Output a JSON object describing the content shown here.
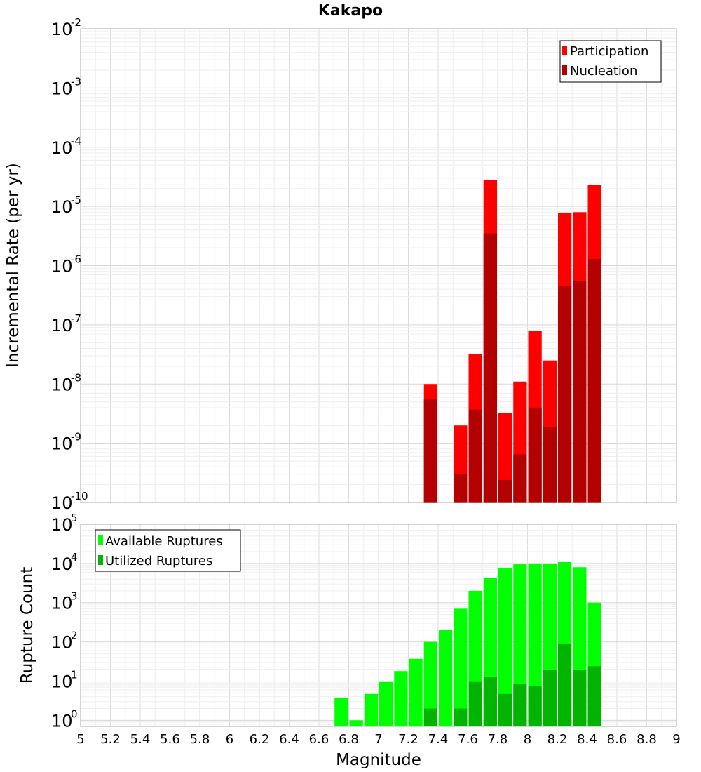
{
  "chart_data": [
    {
      "type": "bar",
      "title": "Kakapo",
      "xlabel": "",
      "ylabel": "Incremental Rate (per yr)",
      "xlim": [
        5,
        9
      ],
      "ylim": [
        1e-10,
        0.01
      ],
      "yscale": "log",
      "bin_width": 0.1,
      "grid": true,
      "legend_position": "top-right",
      "y_exponent_labels": [
        "-10",
        "-9",
        "-8",
        "-7",
        "-6",
        "-5",
        "-4",
        "-3",
        "-2"
      ],
      "series": [
        {
          "name": "Participation",
          "color": "#ff0000",
          "x": [
            7.35,
            7.55,
            7.65,
            7.75,
            7.85,
            7.95,
            8.05,
            8.15,
            8.25,
            8.35,
            8.45
          ],
          "values": [
            1e-08,
            2e-09,
            3.2e-08,
            2.8e-05,
            3.2e-09,
            1.1e-08,
            7.8e-08,
            2.5e-08,
            7.7e-06,
            8e-06,
            2.3e-05
          ]
        },
        {
          "name": "Nucleation",
          "color": "#b30000",
          "x": [
            7.35,
            7.55,
            7.65,
            7.75,
            7.85,
            7.95,
            8.05,
            8.15,
            8.25,
            8.35,
            8.45
          ],
          "values": [
            5.5e-09,
            3e-10,
            3.7e-09,
            3.5e-06,
            2.4e-10,
            6.5e-10,
            4e-09,
            1.9e-09,
            4.5e-07,
            5.5e-07,
            1.3e-06
          ]
        }
      ]
    },
    {
      "type": "bar",
      "title": "",
      "xlabel": "Magnitude",
      "ylabel": "Rupture Count",
      "xlim": [
        5,
        9
      ],
      "ylim": [
        0.7,
        100000
      ],
      "yscale": "log",
      "bin_width": 0.1,
      "grid": true,
      "legend_position": "top-left",
      "y_exponent_labels": [
        "0",
        "1",
        "2",
        "3",
        "4",
        "5"
      ],
      "x_tick_labels": [
        "5",
        "5.2",
        "5.4",
        "5.6",
        "5.8",
        "6",
        "6.2",
        "6.4",
        "6.6",
        "6.8",
        "7",
        "7.2",
        "7.4",
        "7.6",
        "7.8",
        "8",
        "8.2",
        "8.4",
        "8.6",
        "8.8",
        "9"
      ],
      "series": [
        {
          "name": "Available Ruptures",
          "color": "#00ff00",
          "x": [
            6.75,
            6.85,
            6.95,
            7.05,
            7.15,
            7.25,
            7.35,
            7.45,
            7.55,
            7.65,
            7.75,
            7.85,
            7.95,
            8.05,
            8.15,
            8.25,
            8.35,
            8.45
          ],
          "values": [
            3.8,
            1.0,
            4.7,
            9.5,
            18,
            37,
            100,
            200,
            700,
            2000,
            4200,
            7500,
            9500,
            10000,
            9800,
            10800,
            8000,
            1000
          ]
        },
        {
          "name": "Utilized Ruptures",
          "color": "#00b400",
          "x": [
            7.35,
            7.55,
            7.65,
            7.75,
            7.85,
            7.95,
            8.05,
            8.15,
            8.25,
            8.35,
            8.45
          ],
          "values": [
            2,
            2,
            9.5,
            13,
            4.7,
            8.5,
            7.5,
            19,
            90,
            19.5,
            24
          ]
        }
      ]
    }
  ]
}
